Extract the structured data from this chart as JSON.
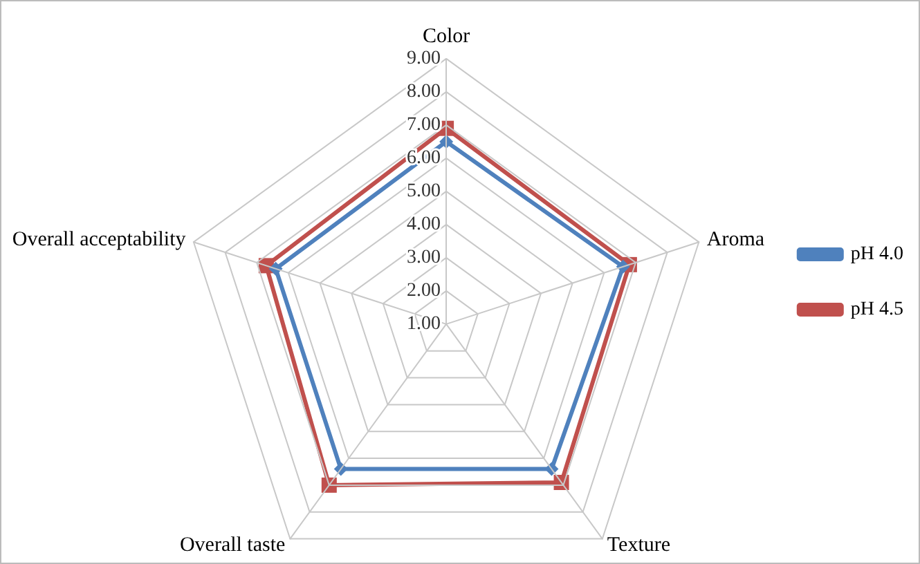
{
  "chart_data": {
    "type": "radar",
    "categories": [
      "Color",
      "Aroma",
      "Texture",
      "Overall taste",
      "Overall acceptability"
    ],
    "series": [
      {
        "name": "pH 4.0",
        "color": "#4f81bd",
        "marker": "diamond",
        "values": [
          6.5,
          6.6,
          6.4,
          6.4,
          6.4
        ]
      },
      {
        "name": "pH 4.5",
        "color": "#c0504d",
        "marker": "square",
        "values": [
          6.9,
          6.8,
          6.9,
          7.0,
          6.7
        ]
      }
    ],
    "ylim": [
      1,
      9
    ],
    "yticks": [
      {
        "value": 1,
        "label": "1.00"
      },
      {
        "value": 2,
        "label": "2.00"
      },
      {
        "value": 3,
        "label": "3.00"
      },
      {
        "value": 4,
        "label": "4.00"
      },
      {
        "value": 5,
        "label": "5.00"
      },
      {
        "value": 6,
        "label": "6.00"
      },
      {
        "value": 7,
        "label": "7.00"
      },
      {
        "value": 8,
        "label": "8.00"
      },
      {
        "value": 9,
        "label": "9.00"
      }
    ],
    "legend": "right",
    "grid": true
  }
}
